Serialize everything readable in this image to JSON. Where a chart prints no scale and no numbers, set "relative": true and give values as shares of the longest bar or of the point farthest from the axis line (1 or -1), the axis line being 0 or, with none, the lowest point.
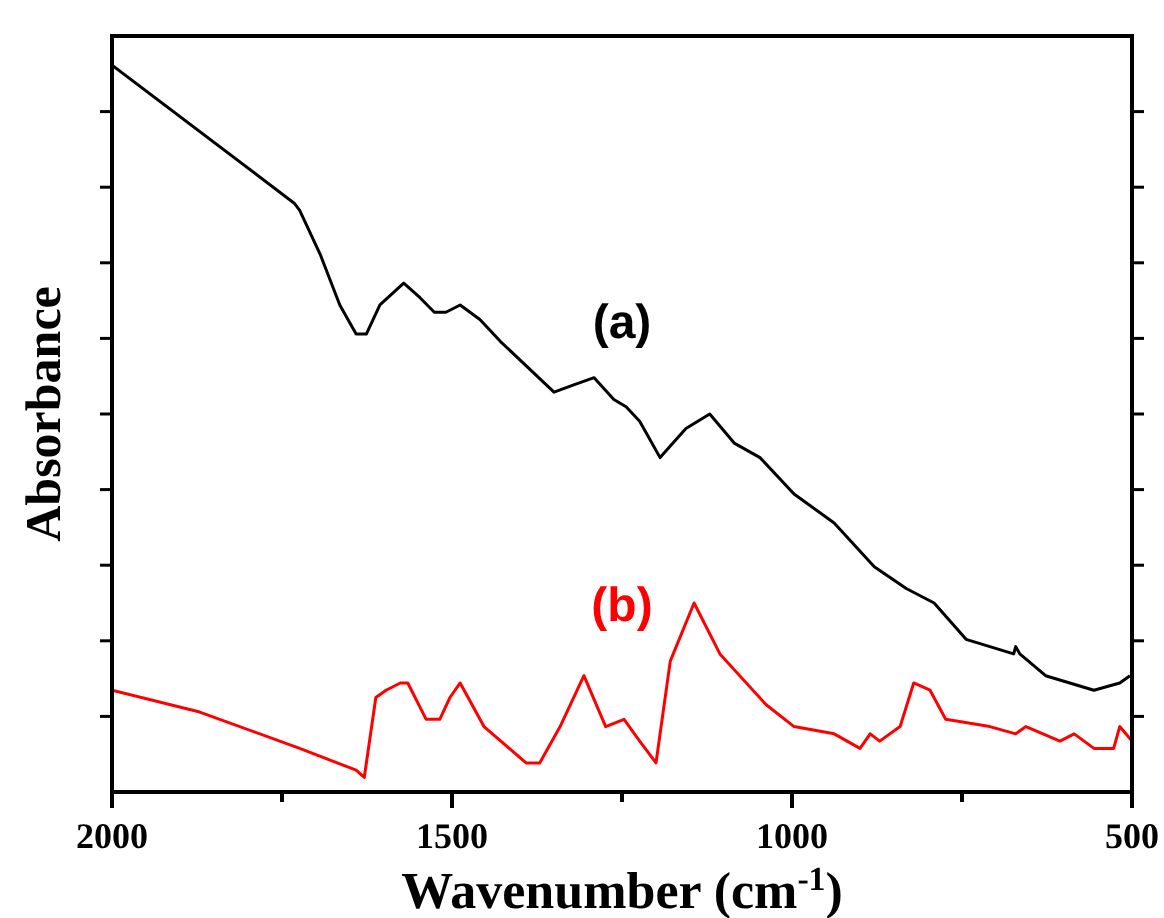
{
  "chart_data": {
    "type": "line",
    "relative": true,
    "xlabel": "Wavenumber (cm$^{-1}$)",
    "ylabel": "Absorbance",
    "xlim": [
      2000,
      500
    ],
    "xticks": [
      2000,
      {
        "value": 1750,
        "label": null
      },
      1500,
      {
        "value": 1250,
        "label": null
      },
      1000,
      {
        "value": 750,
        "label": null
      },
      500
    ],
    "grid": false,
    "line_style": "solid",
    "series": [
      {
        "name": "(a)",
        "color": "#000000",
        "x": [
          2000,
          1732,
          1724,
          1694,
          1665,
          1641,
          1626,
          1606,
          1571,
          1547,
          1526,
          1509,
          1488,
          1459,
          1429,
          1350,
          1321,
          1291,
          1262,
          1244,
          1224,
          1194,
          1156,
          1121,
          1085,
          1047,
          997,
          938,
          879,
          832,
          791,
          744,
          674,
          671,
          665,
          627,
          556,
          518,
          503
        ],
        "values": [
          1.0,
          0.81,
          0.8,
          0.74,
          0.67,
          0.63,
          0.63,
          0.67,
          0.7,
          0.68,
          0.66,
          0.66,
          0.67,
          0.65,
          0.62,
          0.55,
          0.56,
          0.57,
          0.54,
          0.53,
          0.51,
          0.46,
          0.5,
          0.52,
          0.48,
          0.46,
          0.41,
          0.37,
          0.31,
          0.28,
          0.26,
          0.21,
          0.19,
          0.2,
          0.19,
          0.16,
          0.14,
          0.15,
          0.16
        ]
      },
      {
        "name": "(b)",
        "color": "#ff0000",
        "x": [
          2000,
          1871,
          1724,
          1641,
          1629,
          1612,
          1597,
          1576,
          1565,
          1538,
          1518,
          1503,
          1488,
          1453,
          1391,
          1371,
          1341,
          1306,
          1274,
          1247,
          1224,
          1200,
          1179,
          1144,
          1106,
          1038,
          997,
          938,
          900,
          885,
          871,
          841,
          821,
          797,
          774,
          709,
          671,
          656,
          606,
          585,
          556,
          527,
          518,
          500
        ],
        "values": [
          0.14,
          0.11,
          0.06,
          0.03,
          0.02,
          0.13,
          0.14,
          0.15,
          0.15,
          0.1,
          0.1,
          0.13,
          0.15,
          0.09,
          0.04,
          0.04,
          0.09,
          0.16,
          0.09,
          0.1,
          0.07,
          0.04,
          0.18,
          0.26,
          0.19,
          0.12,
          0.09,
          0.08,
          0.06,
          0.08,
          0.07,
          0.09,
          0.15,
          0.14,
          0.1,
          0.09,
          0.08,
          0.09,
          0.07,
          0.08,
          0.06,
          0.06,
          0.09,
          0.07
        ]
      }
    ]
  }
}
